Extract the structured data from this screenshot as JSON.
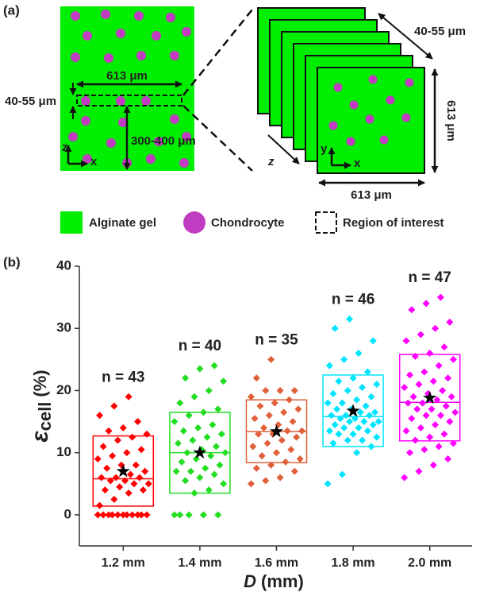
{
  "panel_a": {
    "label": "(a)",
    "width_label": "613 μm",
    "roi_thickness_label": "40-55 μm",
    "depth_label": "300-400 μm",
    "axes": [
      "z",
      "x"
    ],
    "stack_thickness_label": "40-55 μm",
    "stack_height_label": "613 μm",
    "stack_width_label": "613 μm",
    "stack_axes": [
      "y",
      "x"
    ],
    "stack_depth_axis": "z"
  },
  "legend": [
    "Alginate gel",
    "Chondrocyte",
    "Region of interest"
  ],
  "chart_data": {
    "type": "box",
    "panel_label": "(b)",
    "xlabel": {
      "symbol": "D",
      "unit": "(mm)"
    },
    "ylabel": {
      "symbol": "ε",
      "subscript": "cell",
      "unit": "(%)"
    },
    "categories": [
      "1.2 mm",
      "1.4 mm",
      "1.6 mm",
      "1.8 mm",
      "2.0 mm"
    ],
    "ylim": [
      -5,
      40
    ],
    "yticks": [
      0,
      10,
      20,
      30,
      40
    ],
    "groups": [
      {
        "color": "#ff0000",
        "n_label": "n = 43",
        "q1": 1.4,
        "median": 5.8,
        "q3": 12.7,
        "mean": 7.0,
        "points": [
          0,
          0,
          0,
          0,
          0,
          0,
          0,
          0,
          0,
          0,
          0,
          1.5,
          2.5,
          3.5,
          4,
          4,
          4.5,
          5,
          5,
          5.5,
          5.5,
          6,
          6,
          6,
          6.5,
          7,
          7.5,
          8,
          8,
          9,
          9.5,
          10,
          10.5,
          11,
          12,
          12.5,
          13,
          13.5,
          14,
          15,
          16,
          17.5,
          19
        ]
      },
      {
        "color": "#22dd22",
        "n_label": "n = 40",
        "q1": 3.5,
        "median": 10.0,
        "q3": 16.5,
        "mean": 10.0,
        "points": [
          0,
          0,
          0,
          0,
          0,
          3.5,
          4,
          5,
          5.5,
          6,
          6.5,
          7,
          7,
          7.5,
          8,
          8.5,
          9,
          9.5,
          10,
          10,
          10.5,
          11,
          11.5,
          12,
          12.5,
          13,
          13.5,
          14,
          14.5,
          15,
          16,
          16.5,
          17,
          18,
          19,
          20,
          21.5,
          22,
          23.5,
          24
        ]
      },
      {
        "color": "#e0603a",
        "n_label": "n = 35",
        "q1": 8.4,
        "median": 13.4,
        "q3": 18.5,
        "mean": 13.4,
        "points": [
          5,
          5.5,
          6,
          7,
          7.5,
          8,
          8.5,
          9,
          9.5,
          10,
          10.5,
          11,
          11.5,
          12,
          12.5,
          13,
          13,
          13.5,
          13.5,
          14,
          14.5,
          15,
          15.5,
          16,
          16.5,
          17,
          17.5,
          18,
          18.5,
          19,
          20,
          20,
          20,
          22,
          25
        ]
      },
      {
        "color": "#00e5ff",
        "n_label": "n = 46",
        "q1": 11.0,
        "median": 15.8,
        "q3": 22.5,
        "mean": 16.7,
        "points": [
          5,
          6.5,
          10,
          11,
          11.5,
          12,
          12,
          12.5,
          13,
          13,
          13.5,
          13.5,
          14,
          14,
          14.5,
          14.5,
          15,
          15,
          15,
          15.5,
          15.5,
          16,
          16,
          16,
          16.5,
          16.5,
          17,
          17,
          17.5,
          18,
          18,
          18.5,
          19,
          19.5,
          20,
          20.5,
          21,
          21.5,
          22,
          23,
          24,
          25,
          26,
          28,
          30,
          31.5
        ]
      },
      {
        "color": "#ff00ff",
        "n_label": "n = 47",
        "q1": 11.9,
        "median": 18.1,
        "q3": 25.8,
        "mean": 18.8,
        "points": [
          6,
          7,
          8,
          9,
          10,
          10.5,
          11,
          11.5,
          12,
          12.5,
          13,
          13.5,
          14,
          14.5,
          15,
          15.5,
          16,
          16,
          16.5,
          17,
          17,
          17.5,
          18,
          18,
          18.5,
          19,
          19,
          19.5,
          20,
          20.5,
          21,
          21.5,
          22,
          22.5,
          23,
          24,
          25,
          25.5,
          26,
          27,
          28,
          29,
          30,
          31,
          33,
          34,
          35
        ]
      }
    ]
  }
}
